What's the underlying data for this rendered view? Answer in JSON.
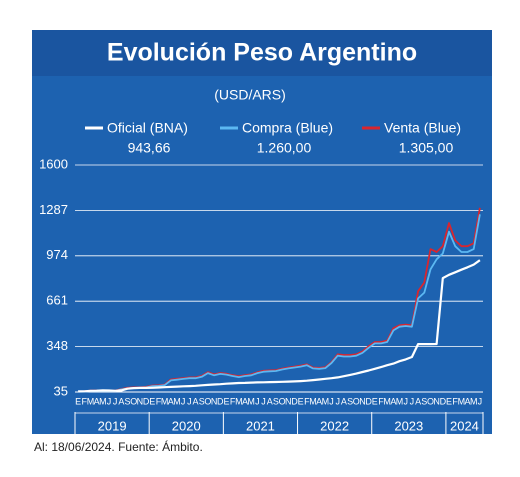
{
  "chart_data": {
    "type": "line",
    "title": "Evolución Peso Argentino",
    "subtitle": "(USD/ARS)",
    "note": "Al: 18/06/2024. Fuente: Ámbito.",
    "categories": [
      "E",
      "F",
      "M",
      "A",
      "M",
      "J",
      "J",
      "A",
      "S",
      "O",
      "N",
      "D",
      "E",
      "F",
      "M",
      "A",
      "M",
      "J",
      "J",
      "A",
      "S",
      "O",
      "N",
      "D",
      "E",
      "F",
      "M",
      "A",
      "M",
      "J",
      "J",
      "A",
      "S",
      "O",
      "N",
      "D",
      "E",
      "F",
      "M",
      "A",
      "M",
      "J",
      "J",
      "A",
      "S",
      "O",
      "N",
      "D",
      "E",
      "F",
      "M",
      "A",
      "M",
      "J",
      "J",
      "A",
      "S",
      "O",
      "N",
      "D",
      "E",
      "F",
      "M",
      "A",
      "M",
      "J"
    ],
    "year_labels": [
      "2019",
      "2020",
      "2021",
      "2022",
      "2023",
      "2024"
    ],
    "ylim": [
      35,
      1600
    ],
    "yticks": [
      35,
      348,
      661,
      974,
      1287,
      1600
    ],
    "grid": true,
    "series": [
      {
        "name": "Oficial (BNA)",
        "color": "#ffffff",
        "value_label": "943,66",
        "values": [
          39,
          40,
          43,
          44,
          46,
          45,
          43,
          46,
          58,
          62,
          63,
          63,
          64,
          66,
          68,
          70,
          72,
          74,
          76,
          78,
          81,
          84,
          87,
          89,
          92,
          94,
          97,
          98,
          100,
          101,
          102,
          103,
          104,
          105,
          107,
          108,
          110,
          113,
          117,
          121,
          126,
          130,
          136,
          144,
          153,
          162,
          173,
          183,
          195,
          207,
          220,
          231,
          247,
          260,
          276,
          365,
          365,
          365,
          366,
          820,
          843,
          860,
          878,
          895,
          913,
          943.66
        ]
      },
      {
        "name": "Compra (Blue)",
        "color": "#5cb8f2",
        "value_label": "1.260,00",
        "values": [
          37,
          38,
          42,
          43,
          44,
          43,
          42,
          53,
          60,
          63,
          63,
          66,
          76,
          77,
          82,
          115,
          120,
          125,
          130,
          130,
          140,
          165,
          150,
          160,
          155,
          145,
          138,
          145,
          150,
          165,
          175,
          178,
          180,
          190,
          198,
          204,
          210,
          220,
          198,
          195,
          200,
          235,
          285,
          280,
          280,
          285,
          305,
          340,
          370,
          370,
          380,
          460,
          485,
          490,
          485,
          680,
          720,
          880,
          950,
          990,
          1140,
          1040,
          1000,
          1000,
          1020,
          1260
        ]
      },
      {
        "name": "Venta (Blue)",
        "color": "#d9252e",
        "value_label": "1.305,00",
        "values": [
          39,
          40,
          44,
          45,
          46,
          45,
          44,
          56,
          64,
          67,
          67,
          70,
          80,
          81,
          86,
          121,
          126,
          131,
          136,
          136,
          146,
          172,
          156,
          166,
          161,
          151,
          144,
          151,
          156,
          171,
          181,
          184,
          186,
          196,
          204,
          210,
          216,
          226,
          204,
          201,
          206,
          241,
          295,
          290,
          290,
          295,
          315,
          350,
          380,
          380,
          390,
          475,
          495,
          500,
          495,
          730,
          790,
          1020,
          1000,
          1040,
          1200,
          1080,
          1040,
          1040,
          1060,
          1305
        ]
      }
    ]
  }
}
